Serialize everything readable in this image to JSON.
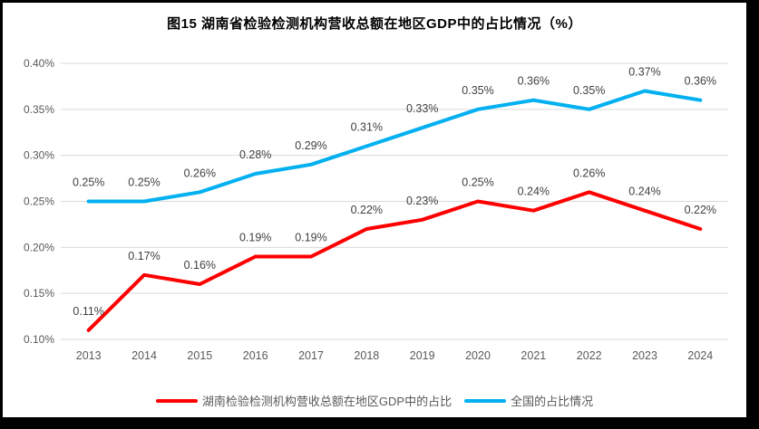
{
  "chart_data": {
    "type": "line",
    "title": "图15 湖南省检验检测机构营收总额在地区GDP中的占比情况（%）",
    "categories": [
      "2013",
      "2014",
      "2015",
      "2016",
      "2017",
      "2018",
      "2019",
      "2020",
      "2021",
      "2022",
      "2023",
      "2024"
    ],
    "series": [
      {
        "name": "湖南检验检测机构营收总额在地区GDP中的占比",
        "color": "#FF0000",
        "values": [
          0.11,
          0.17,
          0.16,
          0.19,
          0.19,
          0.22,
          0.23,
          0.25,
          0.24,
          0.26,
          0.24,
          0.22
        ],
        "labels": [
          "0.11%",
          "0.17%",
          "0.16%",
          "0.19%",
          "0.19%",
          "0.22%",
          "0.23%",
          "0.25%",
          "0.24%",
          "0.26%",
          "0.24%",
          "0.22%"
        ]
      },
      {
        "name": "全国的占比情况",
        "color": "#00B0F0",
        "values": [
          0.25,
          0.25,
          0.26,
          0.28,
          0.29,
          0.31,
          0.33,
          0.35,
          0.36,
          0.35,
          0.37,
          0.36
        ],
        "labels": [
          "0.25%",
          "0.25%",
          "0.26%",
          "0.28%",
          "0.29%",
          "0.31%",
          "0.33%",
          "0.35%",
          "0.36%",
          "0.35%",
          "0.37%",
          "0.36%"
        ]
      }
    ],
    "y_axis": {
      "min": 0.1,
      "max": 0.4,
      "ticks": [
        {
          "label": "0.10%",
          "value": 0.1
        },
        {
          "label": "0.15%",
          "value": 0.15
        },
        {
          "label": "0.20%",
          "value": 0.2
        },
        {
          "label": "0.25%",
          "value": 0.25
        },
        {
          "label": "0.30%",
          "value": 0.3
        },
        {
          "label": "0.35%",
          "value": 0.35
        },
        {
          "label": "0.40%",
          "value": 0.4
        }
      ]
    },
    "grid": true,
    "legend_position": "bottom",
    "colors": {
      "gridline": "#D9D9D9",
      "axis_text": "#595959",
      "data_label": "#404040",
      "title": "#000000",
      "background": "#FFFFFF",
      "frame": "#000000"
    }
  }
}
